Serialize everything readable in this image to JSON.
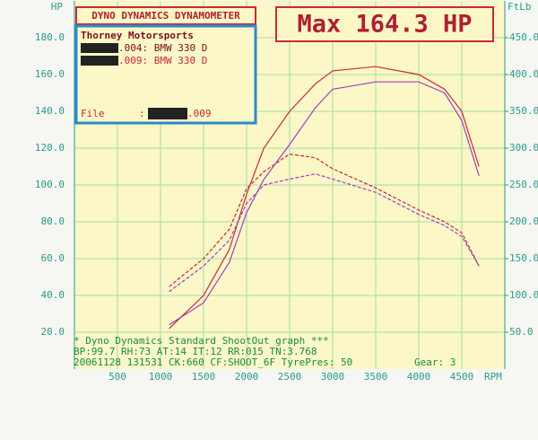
{
  "chart_data": {
    "type": "line",
    "header": "DYNO DYNAMICS DYNAMOMETER",
    "max_label": "Max 164.3 HP",
    "shop": "Thorney Motorsports",
    "file_label": "File",
    "file_sep": ":",
    "file_name": ".009",
    "x_label": "RPM",
    "y_label": "HP",
    "y2_label": "FtLb",
    "footer": [
      "* Dyno Dynamics Standard ShootOut graph ***",
      "BP:99.7  RH:73 AT:14  IT:12   RR:015 TN:3.768",
      "20061128 131531 CK:660 CF:SHOOT_6F TyrePres: 50",
      "Gear: 3"
    ],
    "x": [
      1100,
      1500,
      1800,
      2000,
      2200,
      2500,
      2800,
      3000,
      3500,
      4000,
      4300,
      4500,
      4700
    ],
    "runs": [
      {
        "name": ".004: BMW 330 D",
        "color": "#c8283c",
        "power": [
          22,
          40,
          65,
          95,
          120,
          140,
          155,
          162,
          164.3,
          160,
          152,
          140,
          110
        ],
        "torque": [
          112,
          150,
          190,
          245,
          268,
          292,
          287,
          272,
          246,
          216,
          200,
          185,
          140
        ]
      },
      {
        "name": ".009: BMW 330 D",
        "color": "#a040c0",
        "power": [
          24,
          36,
          58,
          85,
          103,
          122,
          142,
          152,
          156,
          156,
          150,
          135,
          105
        ],
        "torque": [
          105,
          140,
          175,
          225,
          250,
          258,
          265,
          258,
          240,
          210,
          195,
          180,
          140
        ]
      }
    ],
    "xlim": [
      0,
      5000
    ],
    "xticks": [
      500,
      1000,
      1500,
      2000,
      2500,
      3000,
      3500,
      4000,
      4500
    ],
    "ylim": [
      0,
      200
    ],
    "yticks": [
      {
        "value": 20,
        "label": "20.0"
      },
      {
        "value": 40,
        "label": "40.0"
      },
      {
        "value": 60,
        "label": "60.0"
      },
      {
        "value": 80,
        "label": "80.0"
      },
      {
        "value": 100,
        "label": "100.0"
      },
      {
        "value": 120,
        "label": "120.0"
      },
      {
        "value": 140,
        "label": "140.0"
      },
      {
        "value": 160,
        "label": "160.0"
      },
      {
        "value": 180,
        "label": "180.0"
      }
    ],
    "y2lim": [
      0,
      500
    ],
    "y2ticks": [
      {
        "value": 50,
        "label": "50.0"
      },
      {
        "value": 100,
        "label": "100.0"
      },
      {
        "value": 150,
        "label": "150.0"
      },
      {
        "value": 200,
        "label": "200.0"
      },
      {
        "value": 250,
        "label": "250.0"
      },
      {
        "value": 300,
        "label": "300.0"
      },
      {
        "value": 350,
        "label": "350.0"
      },
      {
        "value": 400,
        "label": "400.0"
      },
      {
        "value": 450,
        "label": "450.0"
      }
    ],
    "grid": true
  }
}
